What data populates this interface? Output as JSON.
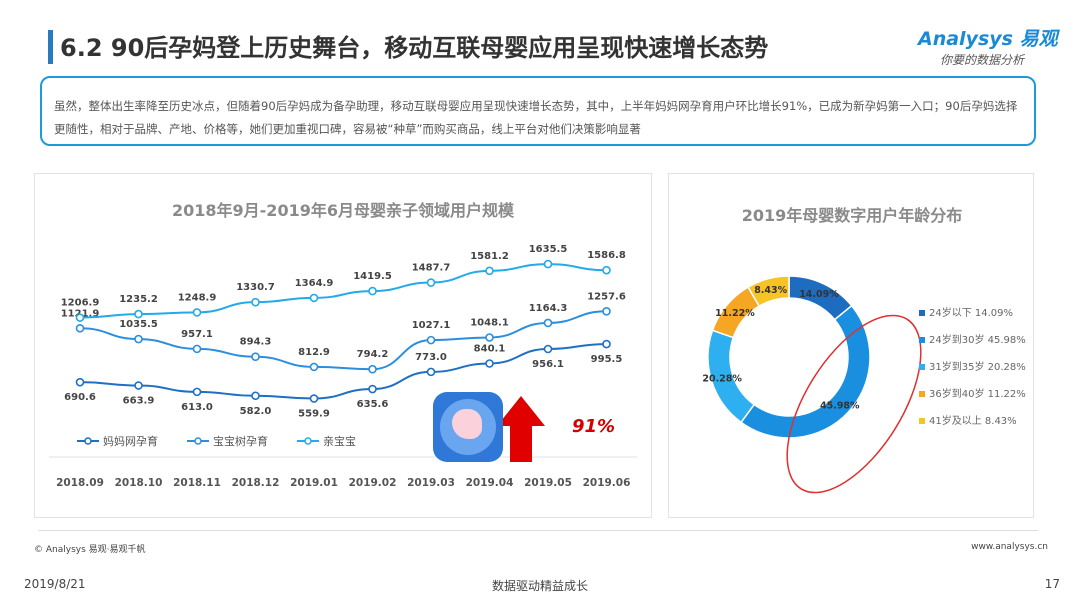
{
  "header": {
    "title": "6.2 90后孕妈登上历史舞台，移动互联母婴应用呈现快速增长态势",
    "logo_main": "Analysys 易观",
    "logo_sub": "你要的数据分析"
  },
  "summary": "虽然，整体出生率降至历史冰点，但随着90后孕妈成为备孕助理，移动互联母婴应用呈现快速增长态势，其中，上半年妈妈网孕育用户环比增长91%，已成为新孕妈第一入口；90后孕妈选择更随性，相对于品牌、产地、价格等，她们更加重视口碑，容易被“种草”而购买商品，线上平台对他们决策影响显著",
  "annotation": {
    "growth_label": "91%"
  },
  "chart_data": [
    {
      "type": "line",
      "title": "2018年9月-2019年6月母婴亲子领域用户规模",
      "x": [
        "2018.09",
        "2018.10",
        "2018.11",
        "2018.12",
        "2019.01",
        "2019.02",
        "2019.03",
        "2019.04",
        "2019.05",
        "2019.06"
      ],
      "series": [
        {
          "name": "妈妈网孕育",
          "values": [
            690.6,
            663.9,
            613.0,
            582.0,
            559.9,
            635.6,
            773.0,
            840.1,
            956.1,
            995.5
          ],
          "color": "#1f6fc4"
        },
        {
          "name": "宝宝树孕育",
          "values": [
            1121.9,
            1035.5,
            957.1,
            894.3,
            812.9,
            794.2,
            1027.1,
            1048.1,
            1164.3,
            1257.6
          ],
          "color": "#2b8ede"
        },
        {
          "name": "亲宝宝",
          "values": [
            1206.9,
            1235.2,
            1248.9,
            1330.7,
            1364.9,
            1419.5,
            1487.7,
            1581.2,
            1635.5,
            1586.8
          ],
          "color": "#22aaea"
        }
      ],
      "legend_position": "bottom-left"
    },
    {
      "type": "pie",
      "title": "2019年母婴数字用户年龄分布",
      "slices": [
        {
          "label": "24岁以下",
          "value": 14.09,
          "display": "14.09%",
          "color": "#1e6cc0"
        },
        {
          "label": "24岁到30岁",
          "value": 45.98,
          "display": "45.98%",
          "color": "#1a8fe0"
        },
        {
          "label": "31岁到35岁",
          "value": 20.28,
          "display": "20.28%",
          "color": "#2eb0f0"
        },
        {
          "label": "36岁到40岁",
          "value": 11.22,
          "display": "11.22%",
          "color": "#f5a623"
        },
        {
          "label": "41岁及以上",
          "value": 8.43,
          "display": "8.43%",
          "color": "#f7c325"
        }
      ],
      "legend": [
        "24岁以下 14.09%",
        "24岁到30岁 45.98%",
        "31岁到35岁 20.28%",
        "36岁到40岁 11.22%",
        "41岁及以上 8.43%"
      ],
      "legend_position": "right"
    }
  ],
  "footer": {
    "source": "© Analysys 易观·易观千帆",
    "site": "www.analysys.cn",
    "date": "2019/8/21",
    "slogan": "数据驱动精益成长",
    "page": "17"
  }
}
